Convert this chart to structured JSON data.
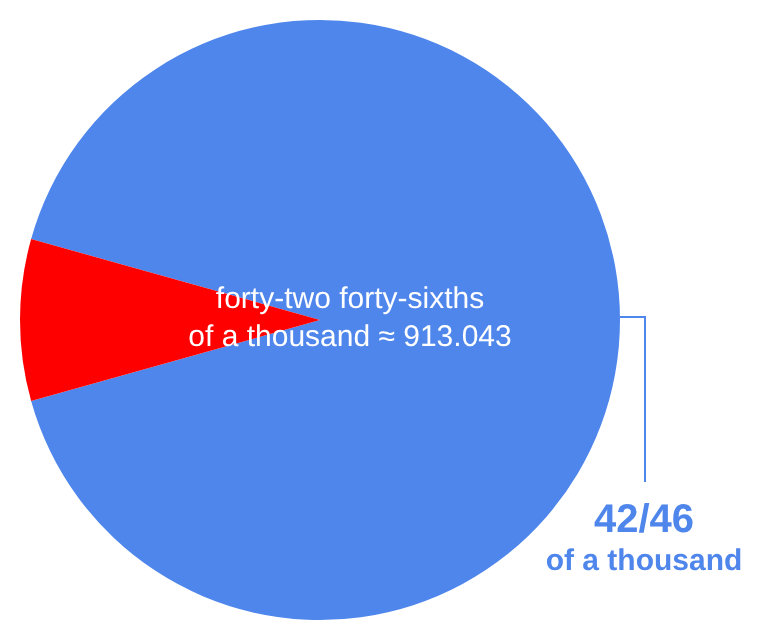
{
  "chart_data": {
    "type": "pie",
    "categories": [
      null,
      null
    ],
    "values": [
      91.3,
      8.7
    ],
    "colors": [
      "#4f86ec",
      "#ff0000"
    ],
    "legend": false,
    "annotations": [
      "forty-two forty-sixths",
      "of a thousand ≈ 913.043",
      "42/46",
      "of a thousand"
    ]
  }
}
